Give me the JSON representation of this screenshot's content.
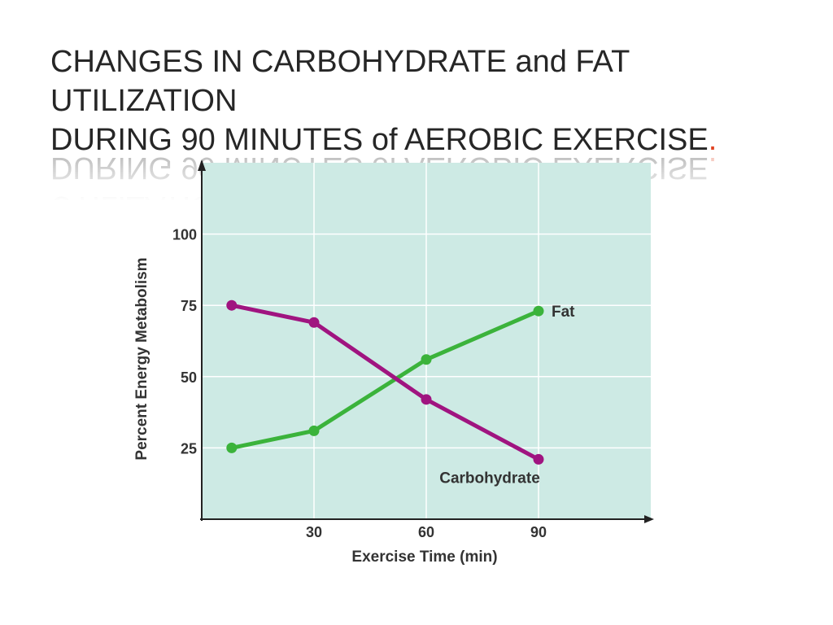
{
  "slide": {
    "title_line1": "CHANGES IN CARBOHYDRATE and FAT UTILIZATION",
    "title_line2": "DURING 90 MINUTES of AEROBIC EXERCISE",
    "title_period": "."
  },
  "chart_data": {
    "type": "line",
    "title": "",
    "xlabel": "Exercise Time (min)",
    "ylabel": "Percent Energy Metabolism",
    "xlim": [
      0,
      120
    ],
    "ylim": [
      0,
      125
    ],
    "x_ticks": [
      30,
      60,
      90
    ],
    "y_ticks": [
      25,
      50,
      75,
      100
    ],
    "grid": true,
    "background_color": "#cdeae4",
    "series": [
      {
        "name": "Fat",
        "color": "#3bb33b",
        "x": [
          8,
          30,
          60,
          90
        ],
        "values": [
          25,
          31,
          56,
          73
        ]
      },
      {
        "name": "Carbohydrate",
        "color": "#a01480",
        "x": [
          8,
          30,
          60,
          90
        ],
        "values": [
          75,
          69,
          42,
          21
        ]
      }
    ]
  }
}
